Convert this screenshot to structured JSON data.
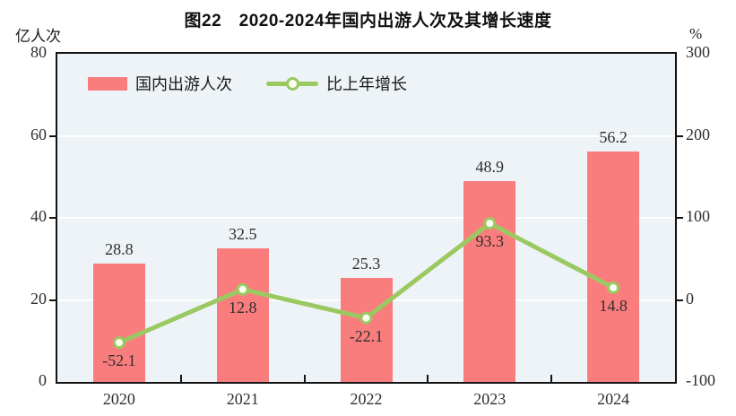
{
  "title": "图22　2020-2024年国内出游人次及其增长速度",
  "left_axis": {
    "unit": "亿人次",
    "ticks": [
      0,
      20,
      40,
      60,
      80
    ],
    "min": 0,
    "max": 80
  },
  "right_axis": {
    "unit": "%",
    "ticks": [
      -100,
      0,
      100,
      200,
      300
    ],
    "min": -100,
    "max": 300
  },
  "legend": [
    {
      "label": "国内出游人次",
      "swatch": "bar"
    },
    {
      "label": "比上年增长",
      "swatch": "line-with-circle-marker"
    }
  ],
  "colors": {
    "bar": "#fa7d7e",
    "line": "#9ac962",
    "marker_fill": "#fdfff2",
    "plot_bg": "#edf3f6",
    "grid": "#ffffff",
    "axis": "#141414",
    "text": "#2e2e2e"
  },
  "chart_data": {
    "type": "combo-bar-line",
    "title": "图22　2020-2024年国内出游人次及其增长速度",
    "categories": [
      "2020",
      "2021",
      "2022",
      "2023",
      "2024"
    ],
    "series": [
      {
        "name": "国内出游人次",
        "type": "bar",
        "axis": "left",
        "unit": "亿人次",
        "values": [
          28.8,
          32.5,
          25.3,
          48.9,
          56.2
        ]
      },
      {
        "name": "比上年增长",
        "type": "line",
        "axis": "right",
        "unit": "%",
        "values": [
          -52.1,
          12.8,
          -22.1,
          93.3,
          14.8
        ]
      }
    ],
    "left_ylim": [
      0,
      80
    ],
    "right_ylim": [
      -100,
      300
    ],
    "grid": true,
    "legend_position": "top-left-inside"
  }
}
